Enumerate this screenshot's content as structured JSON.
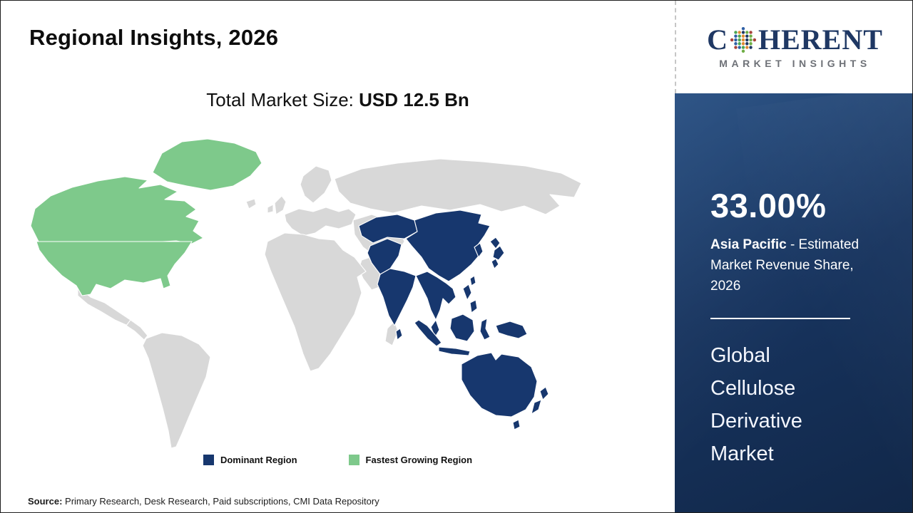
{
  "page": {
    "title": "Regional Insights, 2026",
    "subtitle_label": "Total Market Size: ",
    "subtitle_value": "USD 12.5 Bn",
    "source_label": "Source:",
    "source_text": " Primary Research, Desk Research, Paid subscriptions, CMI Data Repository"
  },
  "legend": {
    "items": [
      {
        "label": "Dominant Region",
        "color": "#17376e"
      },
      {
        "label": "Fastest Growing Region",
        "color": "#7ec98b"
      }
    ]
  },
  "map": {
    "colors": {
      "dominant": "#17376e",
      "fastest_growing": "#7ec98b",
      "other": "#d8d8d8",
      "border": "#ffffff"
    },
    "dominant_region": "Asia Pacific",
    "fastest_growing_region": "North America"
  },
  "sidebar": {
    "logo": {
      "brand_prefix": "C",
      "brand_suffix": "HERENT",
      "brand_subtitle": "MARKET INSIGHTS",
      "globe_colors": [
        "#2f5fa5",
        "#4ba551",
        "#e08a33",
        "#1f3864",
        "#6fae46",
        "#a8433b"
      ]
    },
    "stat_value": "33.00%",
    "stat_region": "Asia Pacific",
    "stat_suffix": " - Estimated Market Revenue Share, 2026",
    "market_name": "Global Cellulose Derivative Market"
  }
}
